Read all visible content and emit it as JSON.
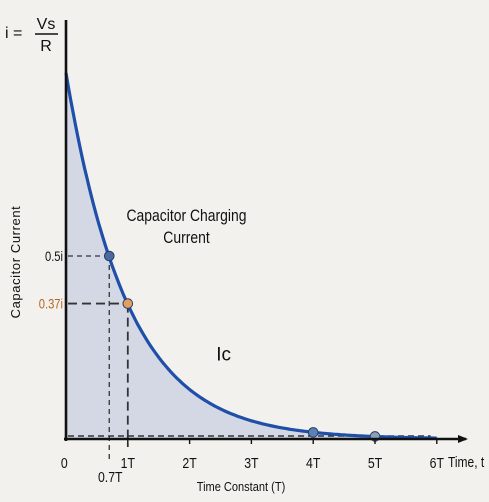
{
  "chart_data": {
    "type": "area",
    "title": "",
    "xlabel": "Time Constant (T)",
    "ylabel": "Capacitor Current",
    "x_axis_end_label": "Time, t",
    "y_axis_top_label": {
      "prefix": "i =",
      "numerator": "Vs",
      "denominator": "R"
    },
    "x_ticks": [
      {
        "value": 0,
        "label": "0"
      },
      {
        "value": 1,
        "label": "1T"
      },
      {
        "value": 2,
        "label": "2T"
      },
      {
        "value": 3,
        "label": "3T"
      },
      {
        "value": 4,
        "label": "4T"
      },
      {
        "value": 5,
        "label": "5T"
      },
      {
        "value": 6,
        "label": "6T"
      }
    ],
    "xlim": [
      0,
      6.3
    ],
    "ylim": [
      0,
      1.05
    ],
    "y_labels": [
      {
        "value": 0.5,
        "label": "0.5i",
        "color": "#111111"
      },
      {
        "value": 0.37,
        "label": "0.37i",
        "color": "#b5651d"
      }
    ],
    "curve": {
      "name": "Ic",
      "formula": "i*exp(-t/T)",
      "x_start": 0,
      "x_end": 6,
      "color": "#1f4fa8",
      "fill": "#d3d8e4"
    },
    "markers": [
      {
        "x": 0.7,
        "y": 0.5,
        "color": "#4a6aa0"
      },
      {
        "x": 1.0,
        "y": 0.37,
        "color": "#e0a060"
      },
      {
        "x": 4.0,
        "y": 0.018,
        "color": "#5a82b8"
      },
      {
        "x": 5.0,
        "y": 0.007,
        "color": "#8aa0b8"
      }
    ],
    "guides": [
      {
        "x": 0.7,
        "y": 0.5
      },
      {
        "x": 1.0,
        "y": 0.37
      }
    ],
    "x_extra_label": {
      "value": 0.7,
      "label": "0.7T"
    },
    "annotations": [
      {
        "text_lines": [
          "Capacitor Charging",
          "Current"
        ],
        "x": 1.95,
        "y": 0.595
      },
      {
        "text_lines": [
          "Ic"
        ],
        "x": 2.55,
        "y": 0.215
      }
    ],
    "grid": false,
    "legend": "none"
  }
}
